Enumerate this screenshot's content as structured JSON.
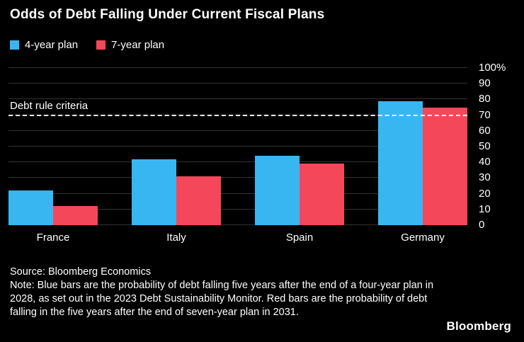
{
  "title": "Odds of Debt Falling Under Current Fiscal Plans",
  "colors": {
    "background": "#000000",
    "blue": "#38b6f2",
    "red": "#f5475a",
    "gridline": "#333333",
    "text": "#ffffff"
  },
  "legend": [
    {
      "label": "4-year plan",
      "color": "#38b6f2"
    },
    {
      "label": "7-year plan",
      "color": "#f5475a"
    }
  ],
  "chart_data": {
    "type": "bar",
    "categories": [
      "France",
      "Italy",
      "Spain",
      "Germany"
    ],
    "series": [
      {
        "name": "4-year plan",
        "color": "#38b6f2",
        "values": [
          22,
          42,
          44,
          79
        ]
      },
      {
        "name": "7-year plan",
        "color": "#f5475a",
        "values": [
          12,
          31,
          39,
          75
        ]
      }
    ],
    "title": "Odds of Debt Falling Under Current Fiscal Plans",
    "xlabel": "",
    "ylabel": "",
    "ylim": [
      0,
      100
    ],
    "ytick_labels": [
      "100%",
      "90",
      "80",
      "70",
      "60",
      "50",
      "40",
      "30",
      "20",
      "10",
      "0"
    ],
    "grid": true,
    "legend_position": "top-left",
    "reference_line": {
      "label": "Debt rule criteria",
      "value": 70
    }
  },
  "footnote": {
    "source": "Source: Bloomberg Economics",
    "note": "Note: Blue bars are the probability of debt falling five years after the end of a four-year plan in 2028, as set out in the 2023 Debt Sustainability Monitor. Red bars are the probability of debt falling in the five years after the end of seven-year plan in 2031."
  },
  "branding": "Bloomberg"
}
